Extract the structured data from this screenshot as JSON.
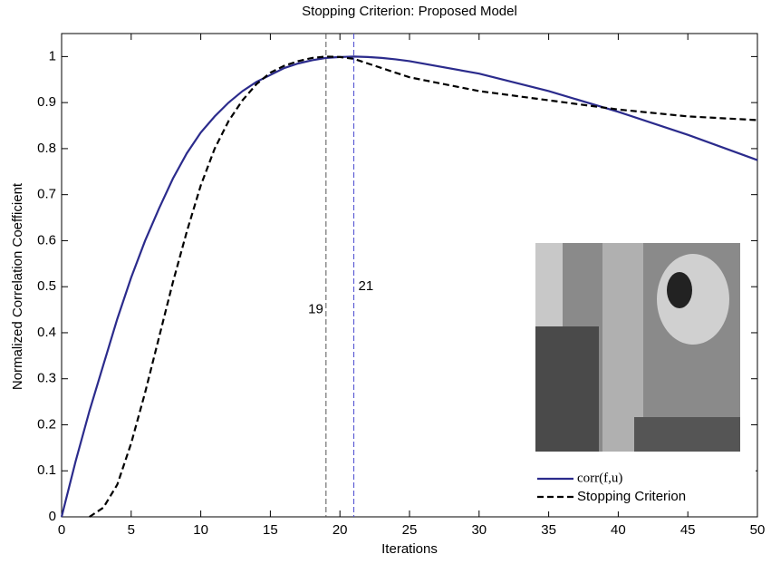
{
  "chart_data": {
    "type": "line",
    "title": "Stopping Criterion: Proposed Model",
    "x_label": "Iterations",
    "y_label": "Normalized Correlation Coefficient",
    "x": [
      0,
      1,
      2,
      3,
      4,
      5,
      6,
      7,
      8,
      9,
      10,
      11,
      12,
      13,
      14,
      15,
      16,
      17,
      18,
      19,
      20,
      21,
      22,
      23,
      24,
      25,
      30,
      35,
      40,
      45,
      50
    ],
    "series": [
      {
        "name": "corr(f,u)",
        "color": "#2b2b8c",
        "dash": false,
        "values": [
          0,
          0.12,
          0.23,
          0.33,
          0.43,
          0.52,
          0.6,
          0.67,
          0.735,
          0.79,
          0.835,
          0.87,
          0.9,
          0.925,
          0.945,
          0.96,
          0.975,
          0.985,
          0.992,
          0.997,
          0.999,
          1.0,
          0.999,
          0.997,
          0.994,
          0.99,
          0.963,
          0.925,
          0.88,
          0.83,
          0.775
        ]
      },
      {
        "name": "Stopping Criterion",
        "color": "#000000",
        "dash": true,
        "values": [
          null,
          null,
          0,
          0.02,
          0.07,
          0.16,
          0.27,
          0.39,
          0.51,
          0.62,
          0.72,
          0.8,
          0.86,
          0.905,
          0.94,
          0.965,
          0.98,
          0.99,
          0.997,
          1.0,
          0.999,
          0.995,
          0.985,
          0.975,
          0.965,
          0.955,
          0.925,
          0.905,
          0.885,
          0.87,
          0.862
        ]
      }
    ],
    "vlines": [
      {
        "x": 19,
        "color": "#555555"
      },
      {
        "x": 21,
        "color": "#4a4ad0"
      }
    ],
    "xlim": [
      0,
      50
    ],
    "xticks": [
      0,
      5,
      10,
      15,
      20,
      25,
      30,
      35,
      40,
      45,
      50
    ],
    "ylim": [
      0,
      1.05
    ],
    "yticks": [
      0,
      0.1,
      0.2,
      0.3,
      0.4,
      0.5,
      0.6,
      0.7,
      0.8,
      0.9,
      1
    ],
    "legend": "lower right",
    "grid": false
  }
}
